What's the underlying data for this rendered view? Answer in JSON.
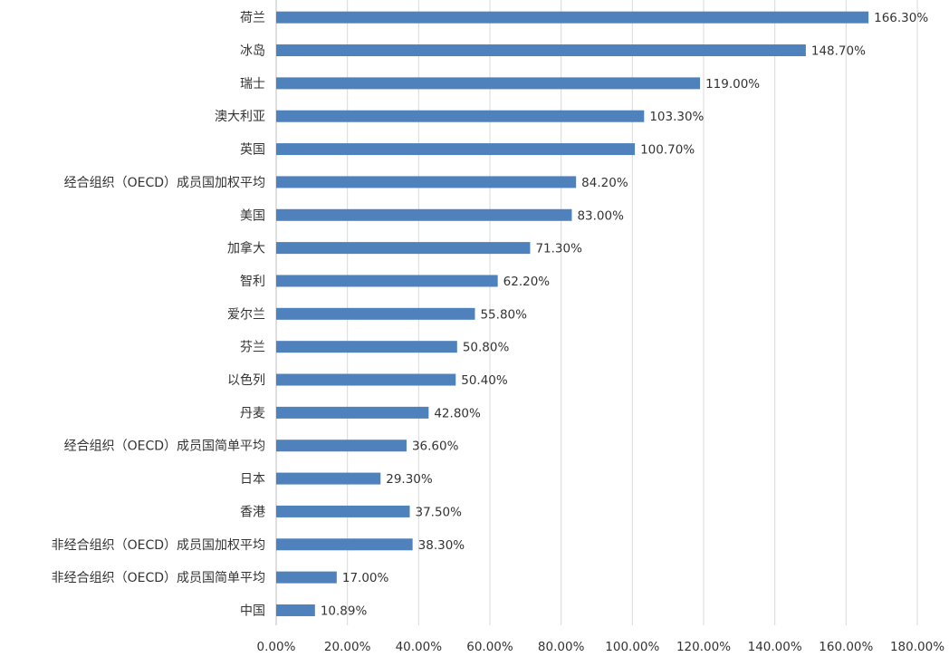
{
  "chart_data": {
    "type": "bar",
    "orientation": "horizontal",
    "title": "",
    "xlabel": "",
    "ylabel": "",
    "xlim": [
      0,
      180
    ],
    "grid": "vertical",
    "bar_color": "#4F81BD",
    "gridline_color": "#D9D9D9",
    "tick_labels": [
      "0.00%",
      "20.00%",
      "40.00%",
      "60.00%",
      "80.00%",
      "100.00%",
      "120.00%",
      "140.00%",
      "160.00%",
      "180.00%"
    ],
    "categories": [
      "荷兰",
      "冰岛",
      "瑞士",
      "澳大利亚",
      "英国",
      "经合组织（OECD）成员国加权平均",
      "美国",
      "加拿大",
      "智利",
      "爱尔兰",
      "芬兰",
      "以色列",
      "丹麦",
      "经合组织（OECD）成员国简单平均",
      "日本",
      "香港",
      "非经合组织（OECD）成员国加权平均",
      "非经合组织（OECD）成员国简单平均",
      "中国"
    ],
    "values": [
      166.3,
      148.7,
      119.0,
      103.3,
      100.7,
      84.2,
      83.0,
      71.3,
      62.2,
      55.8,
      50.8,
      50.4,
      42.8,
      36.6,
      29.3,
      37.5,
      38.3,
      17.0,
      10.89
    ],
    "value_labels": [
      "166.30%",
      "148.70%",
      "119.00%",
      "103.30%",
      "100.70%",
      "84.20%",
      "83.00%",
      "71.30%",
      "62.20%",
      "55.80%",
      "50.80%",
      "50.40%",
      "42.80%",
      "36.60%",
      "29.30%",
      "37.50%",
      "38.30%",
      "17.00%",
      "10.89%"
    ]
  }
}
